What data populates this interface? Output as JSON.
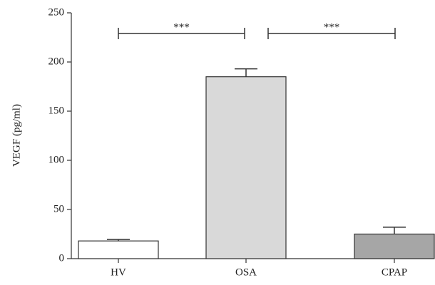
{
  "chart_data": {
    "type": "bar",
    "y_label": "VEGF (pg/ml)",
    "categories": [
      "HV",
      "OSA",
      "CPAP"
    ],
    "values": [
      18,
      185,
      25
    ],
    "errors": [
      1.5,
      8,
      7
    ],
    "colors": [
      "#ffffff",
      "#d9d9d9",
      "#a6a6a6"
    ],
    "ylim": [
      0,
      250
    ],
    "yticks": [
      0,
      50,
      100,
      150,
      200,
      250
    ],
    "annotations": [
      "***",
      "***"
    ]
  }
}
